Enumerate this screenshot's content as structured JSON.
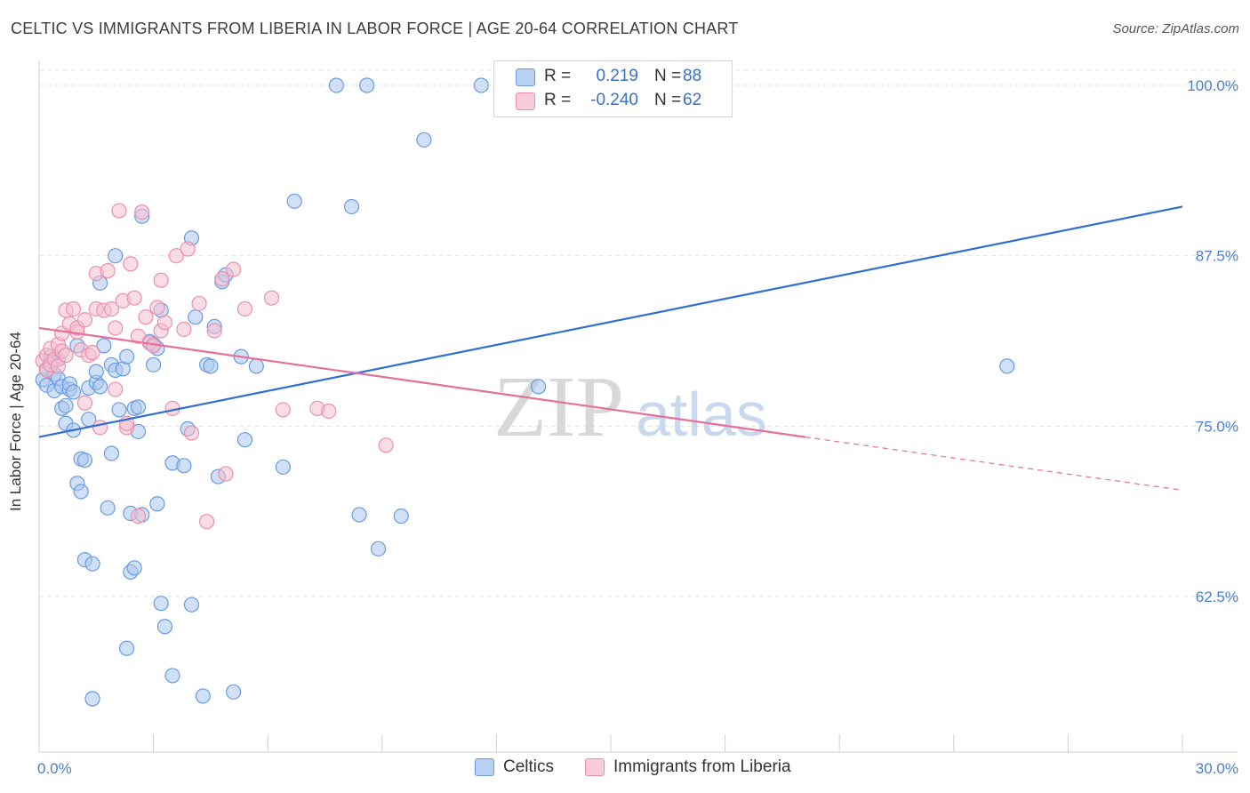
{
  "title": "CELTIC VS IMMIGRANTS FROM LIBERIA IN LABOR FORCE | AGE 20-64 CORRELATION CHART",
  "source": "Source: ZipAtlas.com",
  "watermark": {
    "zip": "ZIP",
    "atlas": "atlas"
  },
  "legend": {
    "rows": [
      {
        "r_label": "R =",
        "r_value": "0.219",
        "n_label": "N =",
        "n_value": "88"
      },
      {
        "r_label": "R =",
        "r_value": "-0.240",
        "n_label": "N =",
        "n_value": "62"
      }
    ]
  },
  "colors": {
    "blue_fill": "#a9c6ef",
    "blue_stroke": "#6a9be0",
    "blue_line": "#2f6fd0",
    "pink_fill": "#f6bfd0",
    "pink_stroke": "#ec8fae",
    "pink_line": "#e5709a",
    "tick_text": "#4a7fd0"
  },
  "chart_data": {
    "type": "scatter",
    "title": "CELTIC VS IMMIGRANTS FROM LIBERIA IN LABOR FORCE | AGE 20-64 CORRELATION CHART",
    "xlabel": "",
    "ylabel": "In Labor Force | Age 20-64",
    "xlim": [
      0,
      30
    ],
    "ylim": [
      51.5,
      101.5
    ],
    "x_tick_labels": [
      "0.0%",
      "30.0%"
    ],
    "y_ticks": [
      62.5,
      75.0,
      87.5,
      100.0
    ],
    "y_tick_labels": [
      "62.5%",
      "75.0%",
      "87.5%",
      "100.0%"
    ],
    "grid": true,
    "series": [
      {
        "name": "Celtics",
        "color": "#a9c6ef",
        "points": [
          [
            0.1,
            78.4
          ],
          [
            0.2,
            79.2
          ],
          [
            0.2,
            78.0
          ],
          [
            0.3,
            79.5
          ],
          [
            0.3,
            80.1
          ],
          [
            0.4,
            78.8
          ],
          [
            0.4,
            77.6
          ],
          [
            0.5,
            79.9
          ],
          [
            0.5,
            78.5
          ],
          [
            0.6,
            76.3
          ],
          [
            0.6,
            77.9
          ],
          [
            0.7,
            75.2
          ],
          [
            0.7,
            76.5
          ],
          [
            0.8,
            77.7
          ],
          [
            0.8,
            78.1
          ],
          [
            0.9,
            74.7
          ],
          [
            0.9,
            77.5
          ],
          [
            1.0,
            70.8
          ],
          [
            1.0,
            80.9
          ],
          [
            1.1,
            72.6
          ],
          [
            1.1,
            70.2
          ],
          [
            1.2,
            65.2
          ],
          [
            1.2,
            72.5
          ],
          [
            1.3,
            75.5
          ],
          [
            1.3,
            77.8
          ],
          [
            1.4,
            64.9
          ],
          [
            1.4,
            55.0
          ],
          [
            1.5,
            78.2
          ],
          [
            1.6,
            77.9
          ],
          [
            1.6,
            85.5
          ],
          [
            1.7,
            80.9
          ],
          [
            1.8,
            69.0
          ],
          [
            1.9,
            73.0
          ],
          [
            1.9,
            79.5
          ],
          [
            2.0,
            87.5
          ],
          [
            2.0,
            79.1
          ],
          [
            2.1,
            76.2
          ],
          [
            2.2,
            79.2
          ],
          [
            2.3,
            58.7
          ],
          [
            2.3,
            80.1
          ],
          [
            2.4,
            68.6
          ],
          [
            2.4,
            64.3
          ],
          [
            2.5,
            64.6
          ],
          [
            2.5,
            76.3
          ],
          [
            2.6,
            76.4
          ],
          [
            2.6,
            74.6
          ],
          [
            2.7,
            68.5
          ],
          [
            2.7,
            90.4
          ],
          [
            2.9,
            81.2
          ],
          [
            3.0,
            79.5
          ],
          [
            3.0,
            81.0
          ],
          [
            3.1,
            80.7
          ],
          [
            3.1,
            69.3
          ],
          [
            3.2,
            83.5
          ],
          [
            3.2,
            62.0
          ],
          [
            3.3,
            60.3
          ],
          [
            3.5,
            56.7
          ],
          [
            3.5,
            72.3
          ],
          [
            3.8,
            72.1
          ],
          [
            3.9,
            74.8
          ],
          [
            4.0,
            61.9
          ],
          [
            4.0,
            88.8
          ],
          [
            4.1,
            83.0
          ],
          [
            4.3,
            55.2
          ],
          [
            4.4,
            79.5
          ],
          [
            4.5,
            79.4
          ],
          [
            4.6,
            82.3
          ],
          [
            4.7,
            71.3
          ],
          [
            4.8,
            85.6
          ],
          [
            4.9,
            86.1
          ],
          [
            5.1,
            55.5
          ],
          [
            5.3,
            80.1
          ],
          [
            5.4,
            74.0
          ],
          [
            5.7,
            79.4
          ],
          [
            6.4,
            72.0
          ],
          [
            6.7,
            91.5
          ],
          [
            7.8,
            100.0
          ],
          [
            8.2,
            91.1
          ],
          [
            8.4,
            68.5
          ],
          [
            8.6,
            100.0
          ],
          [
            8.9,
            66.0
          ],
          [
            9.5,
            68.4
          ],
          [
            10.1,
            96.0
          ],
          [
            11.6,
            100.0
          ],
          [
            13.1,
            77.9
          ],
          [
            25.4,
            79.4
          ],
          [
            0.3,
            79.8
          ],
          [
            1.5,
            79.0
          ]
        ]
      },
      {
        "name": "Immigrants from Liberia",
        "color": "#f6bfd0",
        "points": [
          [
            0.1,
            79.8
          ],
          [
            0.2,
            80.2
          ],
          [
            0.2,
            79.1
          ],
          [
            0.3,
            80.7
          ],
          [
            0.3,
            79.5
          ],
          [
            0.4,
            79.9
          ],
          [
            0.5,
            81.0
          ],
          [
            0.5,
            79.4
          ],
          [
            0.6,
            80.5
          ],
          [
            0.6,
            81.8
          ],
          [
            0.7,
            80.2
          ],
          [
            0.7,
            83.5
          ],
          [
            0.8,
            82.5
          ],
          [
            0.9,
            83.6
          ],
          [
            1.0,
            81.9
          ],
          [
            1.0,
            82.2
          ],
          [
            1.1,
            80.6
          ],
          [
            1.2,
            82.8
          ],
          [
            1.2,
            76.7
          ],
          [
            1.3,
            80.2
          ],
          [
            1.4,
            80.4
          ],
          [
            1.5,
            83.6
          ],
          [
            1.5,
            86.2
          ],
          [
            1.6,
            74.9
          ],
          [
            1.7,
            83.5
          ],
          [
            1.8,
            86.4
          ],
          [
            1.9,
            83.6
          ],
          [
            2.0,
            82.2
          ],
          [
            2.0,
            77.7
          ],
          [
            2.1,
            90.8
          ],
          [
            2.2,
            84.2
          ],
          [
            2.3,
            74.9
          ],
          [
            2.3,
            75.2
          ],
          [
            2.4,
            86.9
          ],
          [
            2.5,
            84.4
          ],
          [
            2.6,
            68.4
          ],
          [
            2.6,
            81.6
          ],
          [
            2.7,
            90.7
          ],
          [
            2.8,
            83.0
          ],
          [
            2.9,
            81.1
          ],
          [
            3.0,
            80.9
          ],
          [
            3.1,
            83.7
          ],
          [
            3.2,
            85.7
          ],
          [
            3.2,
            82.0
          ],
          [
            3.3,
            82.6
          ],
          [
            3.5,
            76.3
          ],
          [
            3.6,
            87.5
          ],
          [
            3.8,
            82.1
          ],
          [
            3.9,
            88.0
          ],
          [
            4.0,
            74.5
          ],
          [
            4.2,
            84.0
          ],
          [
            4.4,
            68.0
          ],
          [
            4.6,
            82.0
          ],
          [
            4.8,
            85.8
          ],
          [
            4.9,
            71.5
          ],
          [
            5.1,
            86.5
          ],
          [
            5.4,
            83.6
          ],
          [
            6.1,
            84.4
          ],
          [
            6.4,
            76.2
          ],
          [
            7.3,
            76.3
          ],
          [
            7.6,
            76.1
          ],
          [
            9.1,
            73.6
          ]
        ]
      }
    ],
    "trend_lines": [
      {
        "series": "Celtics",
        "x": [
          0,
          30
        ],
        "y": [
          74.2,
          91.1
        ],
        "style": "solid"
      },
      {
        "series": "Immigrants from Liberia",
        "x": [
          0,
          20.1
        ],
        "y": [
          82.2,
          74.2
        ],
        "style": "solid"
      },
      {
        "series": "Immigrants from Liberia",
        "x": [
          20.1,
          30
        ],
        "y": [
          74.2,
          70.3
        ],
        "style": "dashed"
      }
    ]
  }
}
